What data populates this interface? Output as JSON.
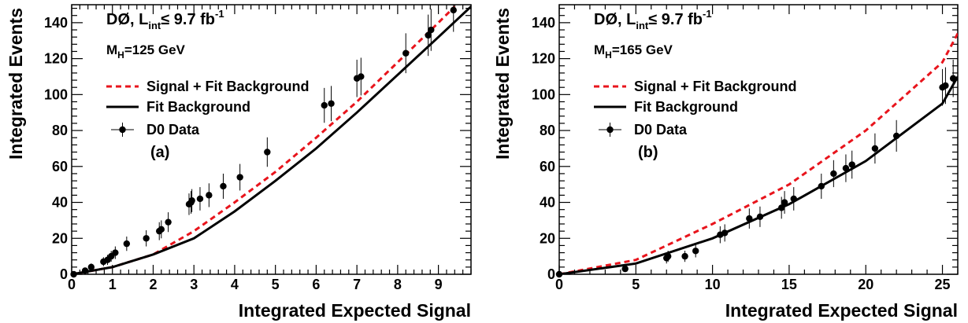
{
  "chart_data": [
    {
      "type": "line",
      "xlabel": "Integrated Expected Signal",
      "ylabel": "Integrated Events",
      "xlim": [
        0,
        9.8
      ],
      "ylim": [
        0,
        150
      ],
      "xticks": [
        0,
        1,
        2,
        3,
        4,
        5,
        6,
        7,
        8,
        9
      ],
      "yticks": [
        0,
        20,
        40,
        60,
        80,
        100,
        120,
        140
      ],
      "annotations": {
        "experiment": "DØ, L",
        "lumi_sub": "int",
        "lumi_rest": "≤ 9.7 fb",
        "lumi_sup": "-1",
        "mass_main": "M",
        "mass_sub": "H",
        "mass_rest": "=125 GeV",
        "panel_label": "(a)"
      },
      "legend": {
        "placement": "top-left",
        "entries": [
          {
            "label": "Signal + Fit Background",
            "color": "#e8141c",
            "style": "dashed"
          },
          {
            "label": "Fit Background",
            "color": "#000000",
            "style": "solid"
          },
          {
            "label": "D0 Data",
            "color": "#000000",
            "style": "marker"
          }
        ]
      },
      "series": [
        {
          "name": "Signal + Fit Background",
          "color": "#e8141c",
          "style": "dashed",
          "points": [
            [
              0,
              0
            ],
            [
              1,
              4
            ],
            [
              2,
              11
            ],
            [
              3,
              24
            ],
            [
              4,
              40
            ],
            [
              5,
              57
            ],
            [
              6,
              76
            ],
            [
              7,
              96
            ],
            [
              8,
              118
            ],
            [
              9,
              140
            ],
            [
              9.4,
              149
            ]
          ]
        },
        {
          "name": "Fit Background",
          "color": "#000000",
          "style": "solid",
          "points": [
            [
              0,
              0
            ],
            [
              1,
              4
            ],
            [
              2,
              11
            ],
            [
              3,
              20
            ],
            [
              4,
              35
            ],
            [
              5,
              52
            ],
            [
              6,
              70
            ],
            [
              7,
              90
            ],
            [
              8,
              111
            ],
            [
              9,
              132
            ],
            [
              9.8,
              149
            ]
          ]
        },
        {
          "name": "D0 Data",
          "color": "#000000",
          "style": "points",
          "points": [
            [
              0.05,
              0,
              1
            ],
            [
              0.33,
              2,
              1.5
            ],
            [
              0.48,
              4,
              2
            ],
            [
              0.78,
              7,
              2.5
            ],
            [
              0.88,
              8,
              2.8
            ],
            [
              0.97,
              10,
              3
            ],
            [
              1.07,
              12,
              3.5
            ],
            [
              1.35,
              17,
              4
            ],
            [
              1.83,
              20,
              4.5
            ],
            [
              2.15,
              24,
              5
            ],
            [
              2.2,
              25,
              5
            ],
            [
              2.37,
              29,
              5.5
            ],
            [
              2.88,
              39,
              6
            ],
            [
              2.93,
              40,
              6.3
            ],
            [
              2.95,
              41,
              6.4
            ],
            [
              3.15,
              42,
              6.5
            ],
            [
              3.37,
              44,
              6.6
            ],
            [
              3.72,
              49,
              7
            ],
            [
              4.13,
              54,
              7.4
            ],
            [
              4.8,
              68,
              8.2
            ],
            [
              6.2,
              94,
              9.7
            ],
            [
              6.37,
              95,
              9.8
            ],
            [
              7.0,
              109,
              10.4
            ],
            [
              7.1,
              110,
              10.5
            ],
            [
              8.2,
              123,
              11.1
            ],
            [
              8.75,
              133,
              11.5
            ],
            [
              8.82,
              136,
              11.7
            ],
            [
              9.37,
              147,
              12.1
            ]
          ]
        }
      ]
    },
    {
      "type": "line",
      "xlabel": "Integrated Expected Signal",
      "ylabel": "Integrated Events",
      "xlim": [
        0,
        26
      ],
      "ylim": [
        0,
        150
      ],
      "xticks": [
        0,
        5,
        10,
        15,
        20,
        25
      ],
      "yticks": [
        0,
        20,
        40,
        60,
        80,
        100,
        120,
        140
      ],
      "annotations": {
        "experiment": "DØ, L",
        "lumi_sub": "int",
        "lumi_rest": "≤ 9.7 fb",
        "lumi_sup": "-1",
        "mass_main": "M",
        "mass_sub": "H",
        "mass_rest": "=165 GeV",
        "panel_label": "(b)"
      },
      "legend": {
        "placement": "top-left",
        "entries": [
          {
            "label": "Signal + Fit Background",
            "color": "#e8141c",
            "style": "dashed"
          },
          {
            "label": "Fit Background",
            "color": "#000000",
            "style": "solid"
          },
          {
            "label": "D0 Data",
            "color": "#000000",
            "style": "marker"
          }
        ]
      },
      "series": [
        {
          "name": "Signal + Fit Background",
          "color": "#e8141c",
          "style": "dashed",
          "points": [
            [
              0,
              0
            ],
            [
              5,
              8
            ],
            [
              10,
              28
            ],
            [
              15,
              50
            ],
            [
              20,
              80
            ],
            [
              25,
              118
            ],
            [
              26,
              134
            ]
          ]
        },
        {
          "name": "Fit Background",
          "color": "#000000",
          "style": "solid",
          "points": [
            [
              0,
              0
            ],
            [
              5,
              6
            ],
            [
              10,
              20
            ],
            [
              15,
              39
            ],
            [
              20,
              63
            ],
            [
              25,
              95
            ],
            [
              26,
              110
            ]
          ]
        },
        {
          "name": "D0 Data",
          "color": "#000000",
          "style": "points",
          "points": [
            [
              0,
              0,
              0.5
            ],
            [
              4.3,
              3,
              1.7
            ],
            [
              7.0,
              9,
              3
            ],
            [
              7.1,
              10,
              3.1
            ],
            [
              8.2,
              10,
              3.1
            ],
            [
              8.9,
              13,
              3.6
            ],
            [
              10.5,
              22,
              4.7
            ],
            [
              10.8,
              23,
              4.8
            ],
            [
              12.4,
              31,
              5.6
            ],
            [
              13.1,
              32,
              5.7
            ],
            [
              14.5,
              37,
              6.1
            ],
            [
              14.7,
              40,
              6.3
            ],
            [
              15.3,
              42,
              6.5
            ],
            [
              17.1,
              49,
              7
            ],
            [
              17.9,
              56,
              7.5
            ],
            [
              18.7,
              59,
              7.7
            ],
            [
              19.1,
              61,
              7.8
            ],
            [
              20.6,
              70,
              8.4
            ],
            [
              22.0,
              77,
              8.8
            ],
            [
              25.0,
              104,
              10.2
            ],
            [
              25.2,
              105,
              10.2
            ],
            [
              25.7,
              109,
              10.4
            ]
          ]
        }
      ]
    }
  ]
}
